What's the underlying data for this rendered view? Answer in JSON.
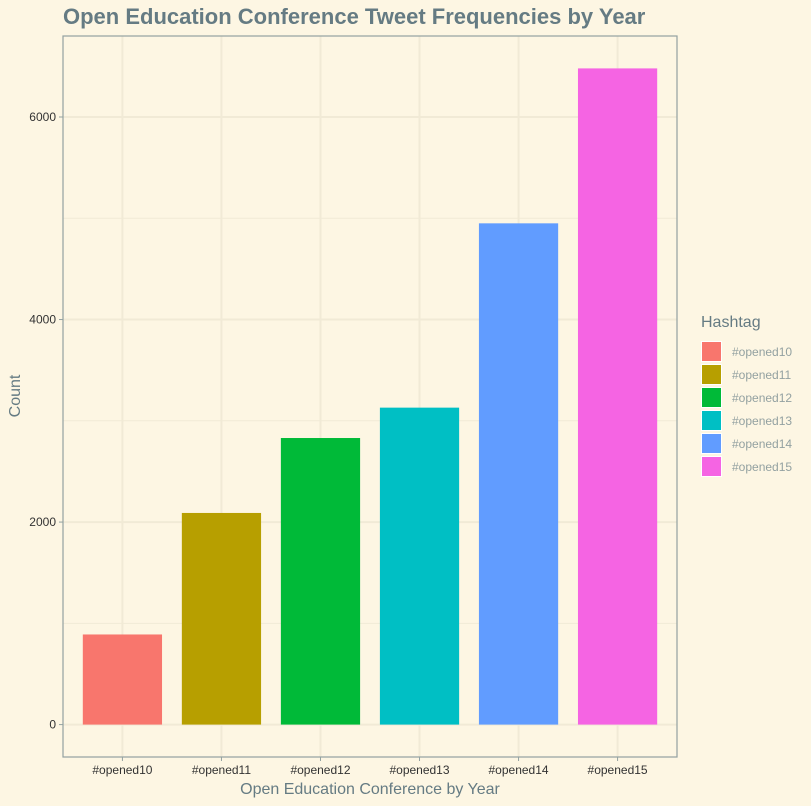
{
  "chart_data": {
    "type": "bar",
    "title": "Open Education Conference Tweet Frequencies by Year",
    "xlabel": "Open Education Conference by Year",
    "ylabel": "Count",
    "categories": [
      "#opened10",
      "#opened11",
      "#opened12",
      "#opened13",
      "#opened14",
      "#opened15"
    ],
    "values": [
      890,
      2090,
      2830,
      3130,
      4950,
      6480
    ],
    "colors": [
      "#f8766d",
      "#b79f00",
      "#00ba38",
      "#00bfc4",
      "#619cff",
      "#f564e3"
    ],
    "yticks": [
      0,
      2000,
      4000,
      6000
    ],
    "ylim": [
      -320,
      6800
    ],
    "grid": true,
    "legend": {
      "title": "Hashtag",
      "placement": "right"
    }
  }
}
